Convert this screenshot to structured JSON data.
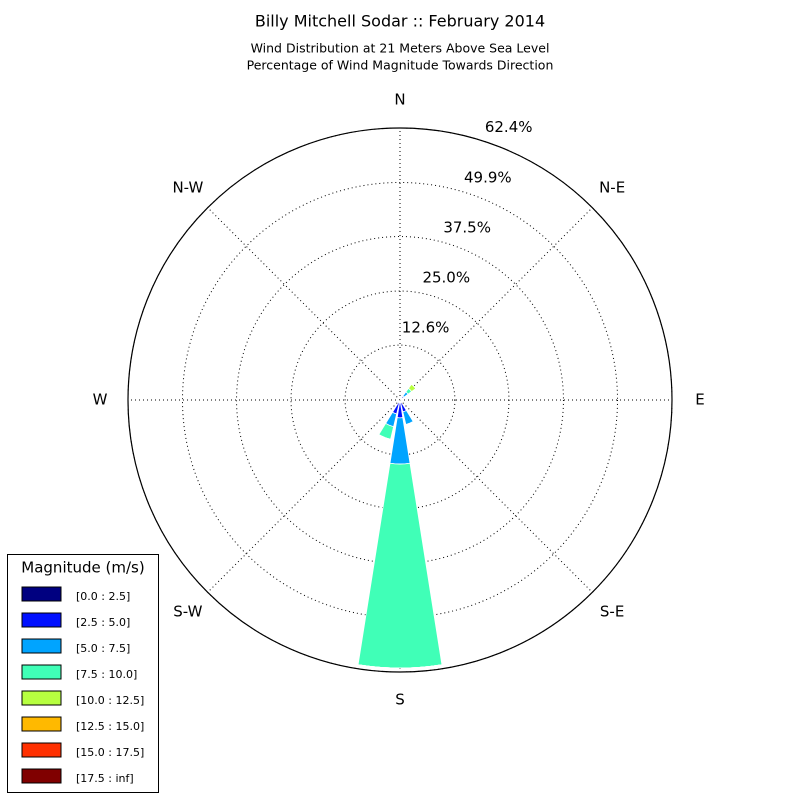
{
  "chart_data": {
    "type": "windrose",
    "title": "Billy Mitchell Sodar :: February 2014",
    "subtitle": [
      "Wind Distribution at 21 Meters Above Sea Level",
      "Percentage of Wind Magnitude Towards Direction"
    ],
    "categories": [
      "N",
      null,
      "N-E",
      null,
      "E",
      null,
      "S-E",
      null,
      "S",
      null,
      "S-W",
      null,
      "W",
      null,
      "N-W",
      null
    ],
    "rlim": [
      0,
      62.4
    ],
    "rticks": [
      {
        "value": 12.6,
        "label": "12.6%"
      },
      {
        "value": 25.0,
        "label": "25.0%"
      },
      {
        "value": 37.5,
        "label": "37.5%"
      },
      {
        "value": 49.9,
        "label": "49.9%"
      },
      {
        "value": 62.4,
        "label": "62.4%"
      }
    ],
    "grid": true,
    "legend_title": "Magnitude (m/s)",
    "legend_position": "lower left",
    "series": [
      {
        "name": "[0.0 : 2.5]",
        "color": "#000080",
        "values": [
          0,
          0,
          0.3,
          0,
          0,
          0,
          0,
          0.3,
          0.6,
          0.3,
          0,
          0,
          0,
          0,
          0,
          0
        ]
      },
      {
        "name": "[2.5 : 5.0]",
        "color": "#0010ff",
        "values": [
          0,
          0,
          0.8,
          0,
          0,
          0,
          0,
          2.5,
          3.5,
          3.0,
          0,
          0,
          0,
          0,
          0,
          0
        ]
      },
      {
        "name": "[5.0 : 7.5]",
        "color": "#00a4ff",
        "values": [
          0,
          0,
          1.2,
          0,
          0,
          0,
          0,
          3.0,
          10.6,
          3.0,
          0,
          0,
          0,
          0,
          0,
          0
        ]
      },
      {
        "name": "[7.5 : 10.0]",
        "color": "#40ffb7",
        "values": [
          0,
          0,
          1.0,
          0,
          0,
          0,
          0,
          0,
          46.8,
          3.0,
          0,
          0,
          0,
          0,
          0,
          0
        ]
      },
      {
        "name": "[10.0 : 12.5]",
        "color": "#b7ff40",
        "values": [
          0,
          0,
          1.2,
          0,
          0,
          0,
          0,
          0,
          0,
          0,
          0,
          0,
          0,
          0,
          0,
          0
        ]
      },
      {
        "name": "[12.5 : 15.0]",
        "color": "#ffb900",
        "values": [
          0,
          0,
          0,
          0,
          0,
          0,
          0,
          0,
          0,
          0,
          0,
          0,
          0,
          0,
          0,
          0
        ]
      },
      {
        "name": "[15.0 : 17.5]",
        "color": "#ff3000",
        "values": [
          0,
          0,
          0,
          0,
          0,
          0,
          0,
          0,
          0,
          0,
          0,
          0,
          0,
          0,
          0,
          0
        ]
      },
      {
        "name": "[17.5 : inf]",
        "color": "#800000",
        "values": [
          0,
          0,
          0,
          0,
          0,
          0,
          0,
          0,
          0,
          0,
          0,
          0,
          0,
          0,
          0,
          0
        ]
      }
    ]
  }
}
